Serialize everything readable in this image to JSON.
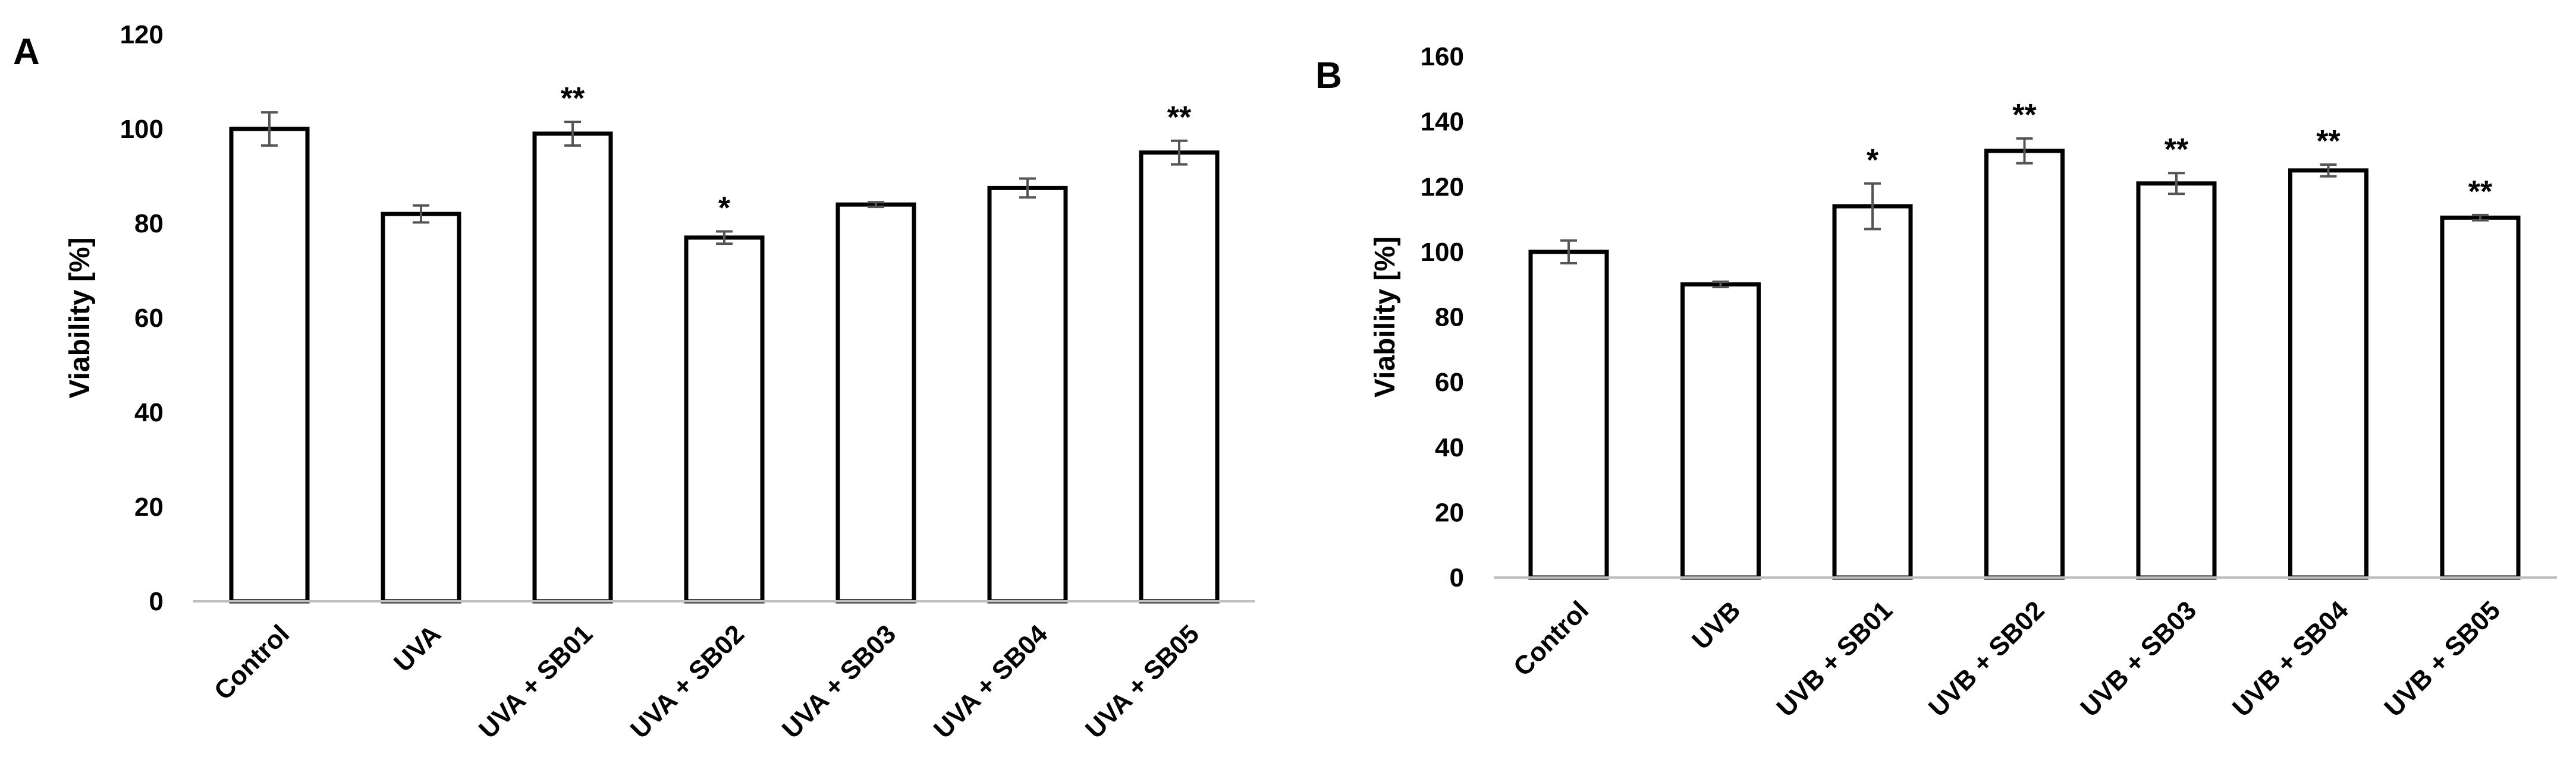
{
  "chart_data": [
    {
      "panel": "A",
      "type": "bar",
      "ylabel": "Viability [%]",
      "ylim": [
        0,
        120
      ],
      "yticks": [
        0,
        20,
        40,
        60,
        80,
        100,
        120
      ],
      "grid": false,
      "categories": [
        "Control",
        "UVA",
        "UVA + SB01",
        "UVA + SB02",
        "UVA + SB03",
        "UVA + SB04",
        "UVA + SB05"
      ],
      "values": [
        100,
        82,
        99,
        77,
        84,
        87.5,
        95
      ],
      "errors": [
        3.5,
        1.8,
        2.5,
        1.3,
        0.5,
        2.0,
        2.5
      ],
      "significance": [
        "",
        "",
        "**",
        "*",
        "",
        "",
        "**"
      ]
    },
    {
      "panel": "B",
      "type": "bar",
      "ylabel": "Viability [%]",
      "ylim": [
        0,
        160
      ],
      "yticks": [
        0,
        20,
        40,
        60,
        80,
        100,
        120,
        140,
        160
      ],
      "grid": false,
      "categories": [
        "Control",
        "UVB",
        "UVB + SB01",
        "UVB + SB02",
        "UVB + SB03",
        "UVB + SB04",
        "UVB + SB05"
      ],
      "values": [
        100,
        90,
        114,
        131,
        121,
        125,
        110.5
      ],
      "errors": [
        3.5,
        0.8,
        7.0,
        3.8,
        3.2,
        1.8,
        0.8
      ],
      "significance": [
        "",
        "",
        "*",
        "**",
        "**",
        "**",
        "**"
      ]
    }
  ]
}
